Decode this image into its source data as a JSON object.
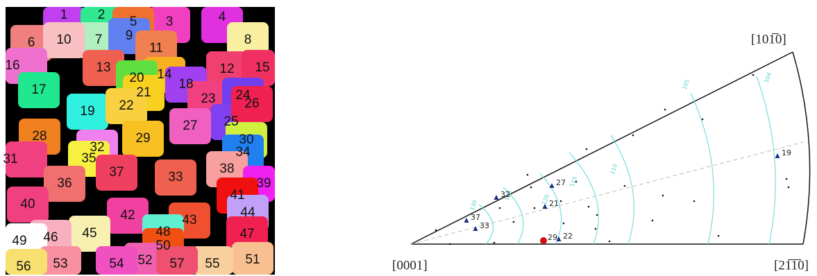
{
  "grain_map": {
    "grains": [
      "1",
      "2",
      "3",
      "4",
      "5",
      "6",
      "7",
      "8",
      "9",
      "10",
      "11",
      "12",
      "13",
      "14",
      "15",
      "16",
      "17",
      "18",
      "19",
      "20",
      "21",
      "22",
      "23",
      "24",
      "25",
      "26",
      "27",
      "28",
      "29",
      "30",
      "31",
      "32",
      "33",
      "34",
      "35",
      "36",
      "37",
      "38",
      "39",
      "40",
      "41",
      "42",
      "43",
      "44",
      "45",
      "46",
      "47",
      "48",
      "49",
      "50",
      "51",
      "52",
      "53",
      "54",
      "55",
      "56",
      "57"
    ]
  },
  "pole_figure": {
    "poles": {
      "top": "[101̅0]",
      "left": "[0001]",
      "right": "[21̅1̅0]"
    },
    "contours": [
      "105",
      "104",
      "110",
      "115",
      "120",
      "125",
      "130"
    ],
    "points": [
      "19",
      "27",
      "21",
      "32",
      "37",
      "33",
      "29",
      "22"
    ]
  }
}
